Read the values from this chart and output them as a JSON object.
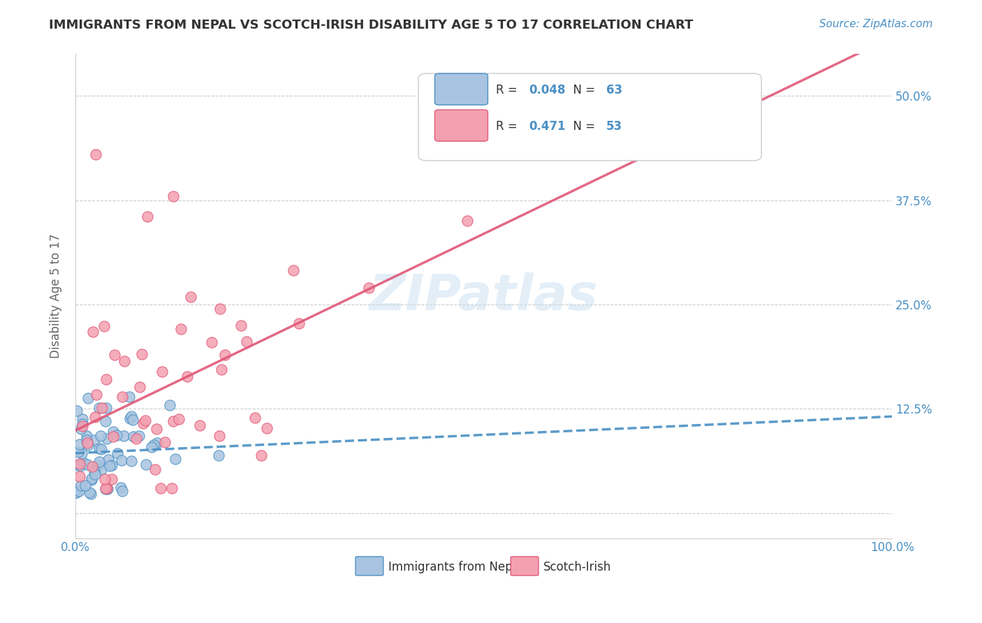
{
  "title": "IMMIGRANTS FROM NEPAL VS SCOTCH-IRISH DISABILITY AGE 5 TO 17 CORRELATION CHART",
  "source_text": "Source: ZipAtlas.com",
  "ylabel": "Disability Age 5 to 17",
  "xlim": [
    0,
    1.0
  ],
  "ylim": [
    -0.03,
    0.55
  ],
  "yticks": [
    0.0,
    0.125,
    0.25,
    0.375,
    0.5
  ],
  "ytick_labels": [
    "",
    "12.5%",
    "25.0%",
    "37.5%",
    "50.0%"
  ],
  "xtick_labels": [
    "0.0%",
    "100.0%"
  ],
  "nepal_R": 0.048,
  "nepal_N": 63,
  "scotch_R": 0.471,
  "scotch_N": 53,
  "nepal_color": "#a8c4e0",
  "scotch_color": "#f4a0b0",
  "nepal_line_color": "#4a90c4",
  "scotch_line_color": "#e05878",
  "watermark": "ZIPatlas",
  "background_color": "#ffffff",
  "grid_color": "#cccccc",
  "title_color": "#333333",
  "axis_label_color": "#4a90c4"
}
